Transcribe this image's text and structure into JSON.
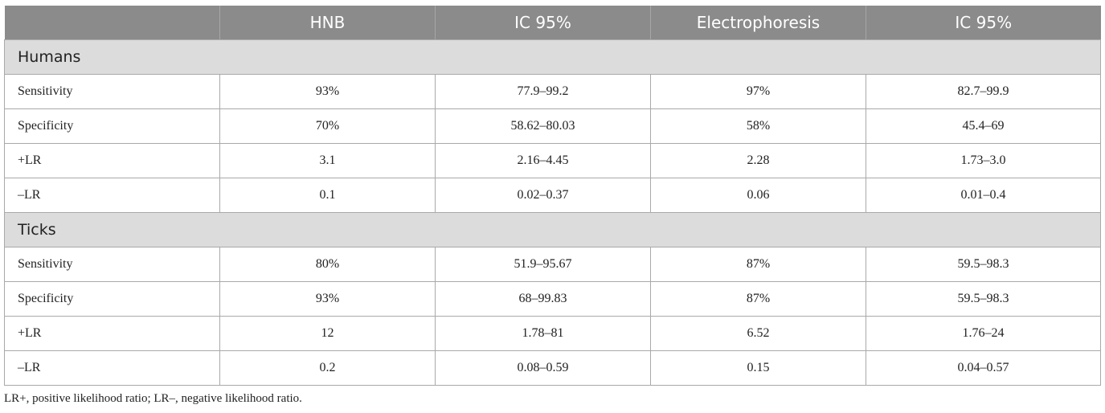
{
  "header": [
    "",
    "HNB",
    "IC 95%",
    "Electrophoresis",
    "IC 95%"
  ],
  "groups": [
    {
      "label": "Humans",
      "rows": [
        {
          "metric": "Sensitivity",
          "hnb": "93%",
          "hnb_ci": "77.9–99.2",
          "electro": "97%",
          "electro_ci": "82.7–99.9"
        },
        {
          "metric": "Specificity",
          "hnb": "70%",
          "hnb_ci": "58.62–80.03",
          "electro": "58%",
          "electro_ci": "45.4–69"
        },
        {
          "metric": "+LR",
          "hnb": "3.1",
          "hnb_ci": "2.16–4.45",
          "electro": "2.28",
          "electro_ci": "1.73–3.0"
        },
        {
          "metric": "–LR",
          "hnb": "0.1",
          "hnb_ci": "0.02–0.37",
          "electro": "0.06",
          "electro_ci": "0.01–0.4"
        }
      ]
    },
    {
      "label": "Ticks",
      "rows": [
        {
          "metric": "Sensitivity",
          "hnb": "80%",
          "hnb_ci": "51.9–95.67",
          "electro": "87%",
          "electro_ci": "59.5–98.3"
        },
        {
          "metric": "Specificity",
          "hnb": "93%",
          "hnb_ci": "68–99.83",
          "electro": "87%",
          "electro_ci": "59.5–98.3"
        },
        {
          "metric": "+LR",
          "hnb": "12",
          "hnb_ci": "1.78–81",
          "electro": "6.52",
          "electro_ci": "1.76–24"
        },
        {
          "metric": "–LR",
          "hnb": "0.2",
          "hnb_ci": "0.08–0.59",
          "electro": "0.15",
          "electro_ci": "0.04–0.57"
        }
      ]
    }
  ],
  "footnote": "LR+, positive likelihood ratio; LR–, negative likelihood ratio."
}
